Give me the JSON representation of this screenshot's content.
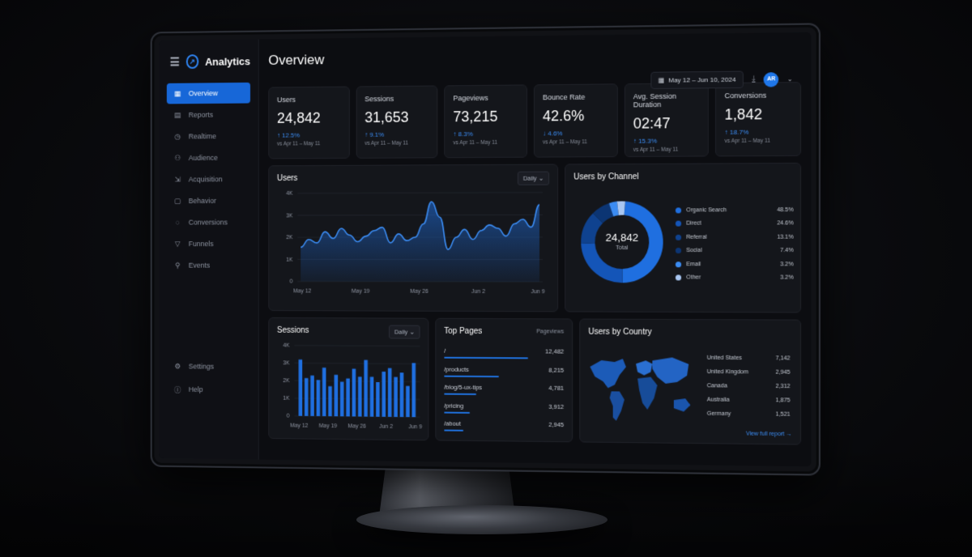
{
  "app": {
    "name": "Analytics"
  },
  "sidebar": {
    "items": [
      {
        "label": "Overview",
        "icon": "grid-icon",
        "active": true
      },
      {
        "label": "Reports",
        "icon": "report-icon"
      },
      {
        "label": "Realtime",
        "icon": "clock-icon"
      },
      {
        "label": "Audience",
        "icon": "users-icon"
      },
      {
        "label": "Acquisition",
        "icon": "acquisition-icon"
      },
      {
        "label": "Behavior",
        "icon": "behavior-icon"
      },
      {
        "label": "Conversions",
        "icon": "conversion-icon"
      },
      {
        "label": "Funnels",
        "icon": "funnel-icon"
      },
      {
        "label": "Events",
        "icon": "events-icon"
      }
    ],
    "bottom": [
      {
        "label": "Settings",
        "icon": "gear-icon"
      },
      {
        "label": "Help",
        "icon": "help-icon"
      }
    ]
  },
  "header": {
    "title": "Overview",
    "date_range": "May 12 – Jun 10, 2024",
    "avatar_initials": "AR"
  },
  "kpis": [
    {
      "label": "Users",
      "value": "24,842",
      "change": "12.5%",
      "direction": "up",
      "compare": "vs Apr 11 – May 11"
    },
    {
      "label": "Sessions",
      "value": "31,653",
      "change": "9.1%",
      "direction": "up",
      "compare": "vs Apr 11 – May 11"
    },
    {
      "label": "Pageviews",
      "value": "73,215",
      "change": "8.3%",
      "direction": "up",
      "compare": "vs Apr 11 – May 11"
    },
    {
      "label": "Bounce Rate",
      "value": "42.6%",
      "change": "4.6%",
      "direction": "down",
      "compare": "vs Apr 11 – May 11"
    },
    {
      "label": "Avg. Session Duration",
      "value": "02:47",
      "change": "15.3%",
      "direction": "up",
      "compare": "vs Apr 11 – May 11"
    },
    {
      "label": "Conversions",
      "value": "1,842",
      "change": "18.7%",
      "direction": "up",
      "compare": "vs Apr 11 – May 11"
    }
  ],
  "users_chart": {
    "title": "Users",
    "interval": "Daily"
  },
  "sessions_chart": {
    "title": "Sessions",
    "interval": "Daily"
  },
  "channel": {
    "title": "Users by Channel",
    "total": "24,842",
    "total_label": "Total",
    "items": [
      {
        "name": "Organic Search",
        "pct": "48.5%",
        "value": 48.5,
        "color": "#1f6fe0"
      },
      {
        "name": "Direct",
        "pct": "24.6%",
        "value": 24.6,
        "color": "#1455b8"
      },
      {
        "name": "Referral",
        "pct": "13.1%",
        "value": 13.1,
        "color": "#0f428f"
      },
      {
        "name": "Social",
        "pct": "7.4%",
        "value": 7.4,
        "color": "#0c3573"
      },
      {
        "name": "Email",
        "pct": "3.2%",
        "value": 3.2,
        "color": "#3b8cf3"
      },
      {
        "name": "Other",
        "pct": "3.2%",
        "value": 3.2,
        "color": "#a9c7f2"
      }
    ]
  },
  "top_pages": {
    "title": "Top Pages",
    "column": "Pageviews",
    "rows": [
      {
        "path": "/",
        "views": "12,482",
        "value": 12482
      },
      {
        "path": "/products",
        "views": "8,215",
        "value": 8215
      },
      {
        "path": "/blog/5-ux-tips",
        "views": "4,781",
        "value": 4781
      },
      {
        "path": "/pricing",
        "views": "3,912",
        "value": 3912
      },
      {
        "path": "/about",
        "views": "2,945",
        "value": 2945
      }
    ]
  },
  "countries": {
    "title": "Users by Country",
    "rows": [
      {
        "name": "United States",
        "value": "7,142"
      },
      {
        "name": "United Kingdom",
        "value": "2,945"
      },
      {
        "name": "Canada",
        "value": "2,312"
      },
      {
        "name": "Australia",
        "value": "1,875"
      },
      {
        "name": "Germany",
        "value": "1,521"
      }
    ],
    "link": "View full report →"
  },
  "chart_data": [
    {
      "type": "area",
      "title": "Users",
      "x_ticks": [
        "May 12",
        "May 19",
        "May 26",
        "Jun 2",
        "Jun 9"
      ],
      "y_ticks": [
        "0",
        "1K",
        "2K",
        "3K",
        "4K"
      ],
      "ylim": [
        0,
        4000
      ],
      "series": [
        {
          "values": [
            1550,
            1900,
            1750,
            2250,
            1950,
            2400,
            2100,
            1800,
            2050,
            2300,
            2450,
            1750,
            2150,
            1850,
            2000,
            2600,
            3600,
            2900,
            1450,
            2000,
            2350,
            1900,
            2300,
            2550,
            2400,
            2050,
            2600,
            2800,
            2450,
            3450
          ]
        }
      ]
    },
    {
      "type": "bar",
      "title": "Sessions",
      "x_ticks": [
        "May 12",
        "May 19",
        "May 26",
        "Jun 2",
        "Jun 9"
      ],
      "y_ticks": [
        "0",
        "1K",
        "2K",
        "3K",
        "4K"
      ],
      "ylim": [
        0,
        4000
      ],
      "values": [
        3200,
        2150,
        2300,
        2050,
        2750,
        1700,
        2350,
        1950,
        2150,
        2700,
        2250,
        3200,
        2250,
        1950,
        2550,
        2750,
        2250,
        2500,
        1750,
        3050
      ]
    },
    {
      "type": "pie",
      "title": "Users by Channel",
      "categories": [
        "Organic Search",
        "Direct",
        "Referral",
        "Social",
        "Email",
        "Other"
      ],
      "values": [
        48.5,
        24.6,
        13.1,
        7.4,
        3.2,
        3.2
      ]
    },
    {
      "type": "bar",
      "title": "Top Pages",
      "categories": [
        "/",
        "/products",
        "/blog/5-ux-tips",
        "/pricing",
        "/about"
      ],
      "values": [
        12482,
        8215,
        4781,
        3912,
        2945
      ]
    }
  ]
}
